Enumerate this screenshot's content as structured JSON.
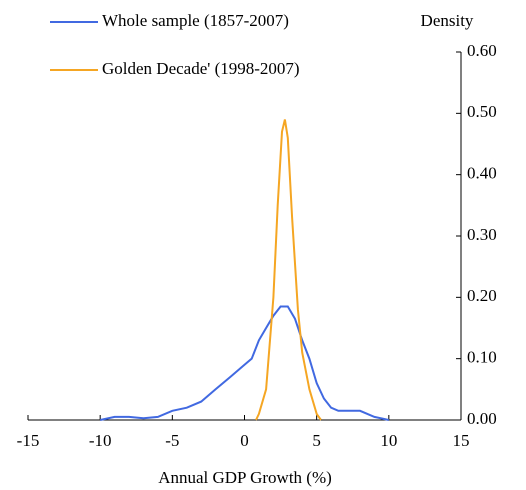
{
  "chart_data": {
    "type": "line",
    "xlabel": "Annual GDP Growth (%)",
    "ylabel": "Density",
    "xlim": [
      -15,
      15
    ],
    "xticks": [
      -15,
      -10,
      -5,
      0,
      5,
      10,
      15
    ],
    "ylim": [
      0,
      0.6
    ],
    "yticks": [
      {
        "value": 0,
        "label": "0.00"
      },
      {
        "value": 0.1,
        "label": "0.10"
      },
      {
        "value": 0.2,
        "label": "0.20"
      },
      {
        "value": 0.3,
        "label": "0.30"
      },
      {
        "value": 0.4,
        "label": "0.40"
      },
      {
        "value": 0.5,
        "label": "0.50"
      },
      {
        "value": 0.6,
        "label": "0.60"
      }
    ],
    "y_axis_side": "right",
    "legend": "top-left",
    "series": [
      {
        "name": "Whole sample (1857-2007)",
        "color": "#4169e1",
        "x": [
          -10,
          -9,
          -8,
          -7,
          -6,
          -5,
          -4,
          -3,
          -2,
          -1,
          0,
          0.5,
          1,
          1.5,
          2,
          2.5,
          3,
          3.5,
          4,
          4.5,
          5,
          5.5,
          6,
          6.5,
          7,
          8,
          9,
          10
        ],
        "values": [
          0,
          0.005,
          0.005,
          0.003,
          0.005,
          0.015,
          0.02,
          0.03,
          0.05,
          0.07,
          0.09,
          0.1,
          0.13,
          0.15,
          0.17,
          0.185,
          0.185,
          0.165,
          0.13,
          0.1,
          0.06,
          0.035,
          0.02,
          0.015,
          0.015,
          0.015,
          0.005,
          0
        ]
      },
      {
        "name": "Golden Decade' (1998-2007)",
        "color": "#f5a623",
        "x": [
          0.8,
          1,
          1.5,
          2,
          2.3,
          2.6,
          2.8,
          3,
          3.3,
          3.7,
          4,
          4.5,
          5,
          5.3
        ],
        "values": [
          0,
          0.01,
          0.05,
          0.2,
          0.35,
          0.47,
          0.49,
          0.46,
          0.33,
          0.18,
          0.11,
          0.05,
          0.01,
          0
        ]
      }
    ]
  }
}
